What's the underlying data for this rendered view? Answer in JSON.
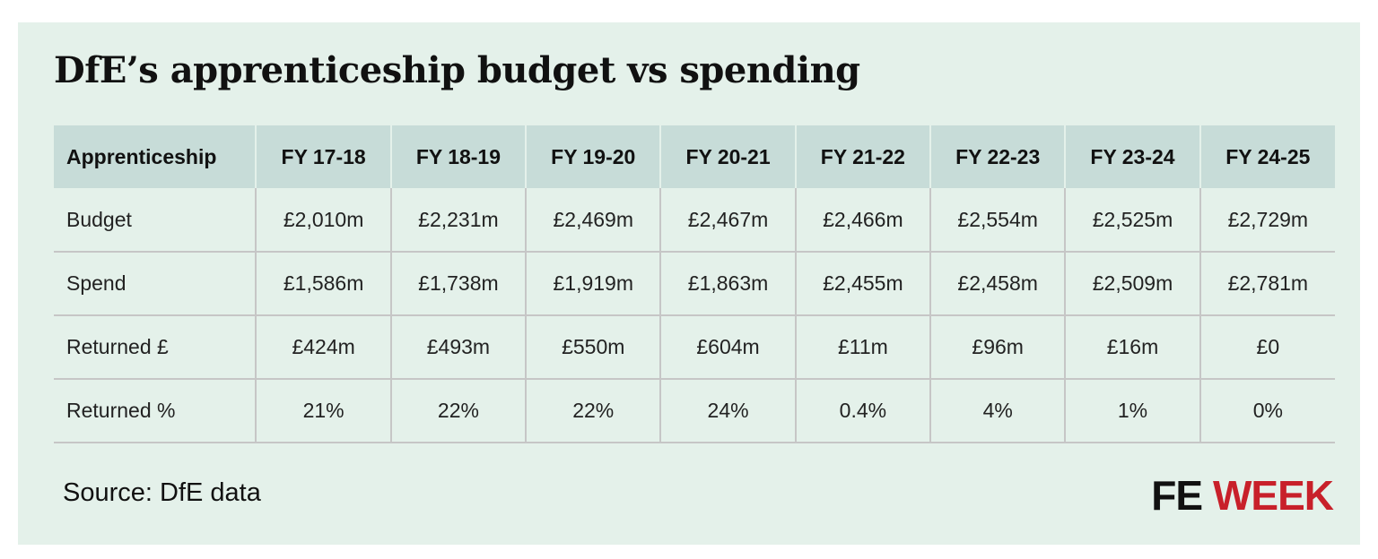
{
  "title": "DfE’s apprenticeship budget vs spending",
  "source": "Source: DfE data",
  "logo": {
    "part1": "FE",
    "part2": "WEEK"
  },
  "colors": {
    "background": "#e4f1ea",
    "header": "#c7dcd8",
    "brand_red": "#c8202a"
  },
  "chart_data": {
    "type": "table",
    "title": "DfE’s apprenticeship budget vs spending",
    "columns": [
      "Apprenticeship",
      "FY 17-18",
      "FY 18-19",
      "FY 19-20",
      "FY 20-21",
      "FY 21-22",
      "FY 22-23",
      "FY 23-24",
      "FY 24-25"
    ],
    "rows": [
      {
        "label": "Budget",
        "values": [
          "£2,010m",
          "£2,231m",
          "£2,469m",
          "£2,467m",
          "£2,466m",
          "£2,554m",
          "£2,525m",
          "£2,729m"
        ]
      },
      {
        "label": "Spend",
        "values": [
          "£1,586m",
          "£1,738m",
          "£1,919m",
          "£1,863m",
          "£2,455m",
          "£2,458m",
          "£2,509m",
          "£2,781m"
        ]
      },
      {
        "label": "Returned £",
        "values": [
          "£424m",
          "£493m",
          "£550m",
          "£604m",
          "£11m",
          "£96m",
          "£16m",
          "£0"
        ]
      },
      {
        "label": "Returned %",
        "values": [
          "21%",
          "22%",
          "22%",
          "24%",
          "0.4%",
          "4%",
          "1%",
          "0%"
        ]
      }
    ]
  }
}
